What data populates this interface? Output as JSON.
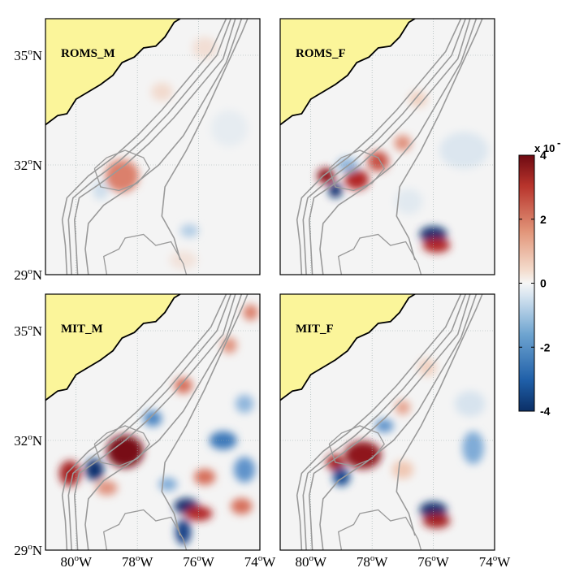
{
  "chart_data": {
    "type": "heatmap",
    "xlim": [
      -81,
      -74
    ],
    "ylim": [
      29,
      36
    ],
    "grid": true,
    "x_ticks": [
      {
        "value": -80,
        "deg": "80",
        "hem": "W"
      },
      {
        "value": -78,
        "deg": "78",
        "hem": "W"
      },
      {
        "value": -76,
        "deg": "76",
        "hem": "W"
      },
      {
        "value": -74,
        "deg": "74",
        "hem": "W"
      }
    ],
    "y_ticks": [
      {
        "value": 29,
        "deg": "29",
        "hem": "N"
      },
      {
        "value": 32,
        "deg": "32",
        "hem": "N"
      },
      {
        "value": 35,
        "deg": "35",
        "hem": "N"
      }
    ],
    "degree_symbol": "o",
    "colorbar": {
      "min": -4,
      "max": 4,
      "ticks": [
        "-4",
        "-2",
        "0",
        "2",
        "4"
      ],
      "tick_values": [
        -4,
        -2,
        0,
        2,
        4
      ],
      "scale_label": "x 10",
      "exponent": "-"
    },
    "colors": {
      "land": "#fbf59a",
      "ocean": "#f4f4f4",
      "contour": "#9a9a9a",
      "coast": "#000000",
      "positive": "#8e1118",
      "negative": "#0b3c7a"
    },
    "panels": [
      {
        "id": "roms-m",
        "label": "ROMS_M",
        "blobs": [
          {
            "lon": -78.5,
            "lat": 31.7,
            "rx": 0.55,
            "ry": 0.45,
            "value": 1.8
          },
          {
            "lon": -79.2,
            "lat": 31.3,
            "rx": 0.25,
            "ry": 0.25,
            "value": -0.8
          },
          {
            "lon": -76.3,
            "lat": 30.2,
            "rx": 0.3,
            "ry": 0.18,
            "value": -1.2
          },
          {
            "lon": -77.2,
            "lat": 34.0,
            "rx": 0.35,
            "ry": 0.25,
            "value": 0.6
          },
          {
            "lon": -75.8,
            "lat": 35.2,
            "rx": 0.4,
            "ry": 0.3,
            "value": 0.5
          },
          {
            "lon": -75.0,
            "lat": 33.0,
            "rx": 0.6,
            "ry": 0.5,
            "value": -0.3
          },
          {
            "lon": -76.5,
            "lat": 29.4,
            "rx": 0.45,
            "ry": 0.25,
            "value": 0.4
          }
        ]
      },
      {
        "id": "roms-f",
        "label": "ROMS_F",
        "blobs": [
          {
            "lon": -79.5,
            "lat": 31.7,
            "rx": 0.3,
            "ry": 0.22,
            "value": 3.6
          },
          {
            "lon": -79.2,
            "lat": 31.3,
            "rx": 0.22,
            "ry": 0.2,
            "value": -4.0
          },
          {
            "lon": -78.5,
            "lat": 31.6,
            "rx": 0.4,
            "ry": 0.28,
            "value": 3.0
          },
          {
            "lon": -78.8,
            "lat": 32.0,
            "rx": 0.35,
            "ry": 0.2,
            "value": -1.6
          },
          {
            "lon": -77.8,
            "lat": 32.1,
            "rx": 0.35,
            "ry": 0.28,
            "value": 2.4
          },
          {
            "lon": -77.0,
            "lat": 32.6,
            "rx": 0.28,
            "ry": 0.22,
            "value": 1.6
          },
          {
            "lon": -76.0,
            "lat": 30.1,
            "rx": 0.45,
            "ry": 0.22,
            "value": -4.0
          },
          {
            "lon": -75.9,
            "lat": 29.8,
            "rx": 0.45,
            "ry": 0.2,
            "value": 3.0
          },
          {
            "lon": -76.5,
            "lat": 33.8,
            "rx": 0.3,
            "ry": 0.22,
            "value": 0.8
          },
          {
            "lon": -75.0,
            "lat": 32.4,
            "rx": 0.8,
            "ry": 0.5,
            "value": -0.5
          },
          {
            "lon": -76.8,
            "lat": 31.0,
            "rx": 0.45,
            "ry": 0.35,
            "value": -0.4
          }
        ]
      },
      {
        "id": "mit-m",
        "label": "MIT_M",
        "blobs": [
          {
            "lon": -80.2,
            "lat": 31.1,
            "rx": 0.35,
            "ry": 0.35,
            "value": 3.2
          },
          {
            "lon": -79.4,
            "lat": 31.2,
            "rx": 0.3,
            "ry": 0.3,
            "value": -4.0
          },
          {
            "lon": -78.4,
            "lat": 31.7,
            "rx": 0.6,
            "ry": 0.45,
            "value": 4.0
          },
          {
            "lon": -77.5,
            "lat": 32.6,
            "rx": 0.3,
            "ry": 0.22,
            "value": -2.4
          },
          {
            "lon": -76.5,
            "lat": 33.5,
            "rx": 0.3,
            "ry": 0.22,
            "value": 2.0
          },
          {
            "lon": -76.4,
            "lat": 30.2,
            "rx": 0.4,
            "ry": 0.22,
            "value": -4.0
          },
          {
            "lon": -76.0,
            "lat": 30.0,
            "rx": 0.45,
            "ry": 0.2,
            "value": 3.0
          },
          {
            "lon": -76.5,
            "lat": 29.5,
            "rx": 0.25,
            "ry": 0.35,
            "value": -3.6
          },
          {
            "lon": -75.2,
            "lat": 32.0,
            "rx": 0.45,
            "ry": 0.25,
            "value": -2.6
          },
          {
            "lon": -74.5,
            "lat": 31.2,
            "rx": 0.35,
            "ry": 0.35,
            "value": -2.2
          },
          {
            "lon": -75.8,
            "lat": 31.0,
            "rx": 0.35,
            "ry": 0.22,
            "value": 2.0
          },
          {
            "lon": -74.6,
            "lat": 30.2,
            "rx": 0.35,
            "ry": 0.22,
            "value": 2.0
          },
          {
            "lon": -74.5,
            "lat": 33.0,
            "rx": 0.3,
            "ry": 0.25,
            "value": -1.6
          },
          {
            "lon": -75.0,
            "lat": 34.6,
            "rx": 0.25,
            "ry": 0.22,
            "value": 1.6
          },
          {
            "lon": -74.3,
            "lat": 35.5,
            "rx": 0.25,
            "ry": 0.22,
            "value": 1.8
          },
          {
            "lon": -77.0,
            "lat": 30.8,
            "rx": 0.3,
            "ry": 0.18,
            "value": -1.8
          },
          {
            "lon": -79.0,
            "lat": 30.7,
            "rx": 0.35,
            "ry": 0.2,
            "value": 1.6
          }
        ]
      },
      {
        "id": "mit-f",
        "label": "MIT_F",
        "blobs": [
          {
            "lon": -79.2,
            "lat": 31.4,
            "rx": 0.3,
            "ry": 0.22,
            "value": 3.2
          },
          {
            "lon": -79.0,
            "lat": 31.0,
            "rx": 0.28,
            "ry": 0.25,
            "value": -3.4
          },
          {
            "lon": -78.3,
            "lat": 31.6,
            "rx": 0.6,
            "ry": 0.38,
            "value": 3.6
          },
          {
            "lon": -77.6,
            "lat": 32.4,
            "rx": 0.3,
            "ry": 0.18,
            "value": -2.2
          },
          {
            "lon": -77.0,
            "lat": 32.9,
            "rx": 0.25,
            "ry": 0.2,
            "value": 1.4
          },
          {
            "lon": -76.0,
            "lat": 30.1,
            "rx": 0.45,
            "ry": 0.22,
            "value": -4.0
          },
          {
            "lon": -75.9,
            "lat": 29.8,
            "rx": 0.45,
            "ry": 0.2,
            "value": 3.2
          },
          {
            "lon": -74.7,
            "lat": 31.8,
            "rx": 0.35,
            "ry": 0.45,
            "value": -1.8
          },
          {
            "lon": -76.2,
            "lat": 34.0,
            "rx": 0.3,
            "ry": 0.25,
            "value": 0.8
          },
          {
            "lon": -74.8,
            "lat": 33.0,
            "rx": 0.5,
            "ry": 0.35,
            "value": -0.6
          },
          {
            "lon": -77.0,
            "lat": 31.2,
            "rx": 0.35,
            "ry": 0.25,
            "value": 1.0
          }
        ]
      }
    ]
  }
}
